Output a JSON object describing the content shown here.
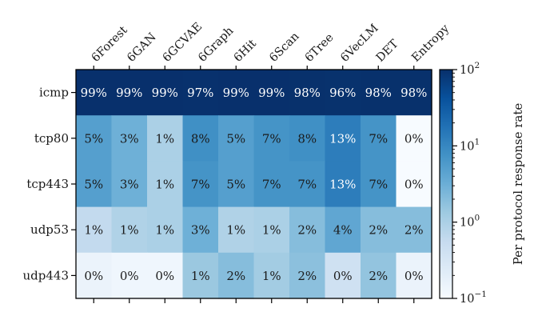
{
  "chart_data": {
    "type": "heatmap",
    "columns": [
      "6Forest",
      "6GAN",
      "6GCVAE",
      "6Graph",
      "6Hit",
      "6Scan",
      "6Tree",
      "6VecLM",
      "DET",
      "Entropy"
    ],
    "rows": [
      "icmp",
      "tcp80",
      "tcp443",
      "udp53",
      "udp443"
    ],
    "cell_labels": [
      [
        "99%",
        "99%",
        "99%",
        "97%",
        "99%",
        "99%",
        "98%",
        "96%",
        "98%",
        "98%"
      ],
      [
        "5%",
        "3%",
        "1%",
        "8%",
        "5%",
        "7%",
        "8%",
        "13%",
        "7%",
        "0%"
      ],
      [
        "5%",
        "3%",
        "1%",
        "7%",
        "5%",
        "7%",
        "7%",
        "13%",
        "7%",
        "0%"
      ],
      [
        "1%",
        "1%",
        "1%",
        "3%",
        "1%",
        "1%",
        "2%",
        "4%",
        "2%",
        "2%"
      ],
      [
        "0%",
        "0%",
        "0%",
        "1%",
        "2%",
        "1%",
        "2%",
        "0%",
        "2%",
        "0%"
      ]
    ],
    "values": [
      [
        99,
        99,
        99,
        97,
        99,
        99,
        98,
        96,
        98,
        98
      ],
      [
        5,
        3,
        1,
        8,
        5,
        7,
        8,
        13,
        7,
        0.1
      ],
      [
        5,
        3,
        1,
        7,
        5,
        7,
        7,
        13,
        7,
        0.1
      ],
      [
        0.6,
        0.9,
        1,
        3,
        0.9,
        1,
        2,
        4,
        2,
        2
      ],
      [
        0.15,
        0.13,
        0.13,
        1.4,
        2,
        1.2,
        1.8,
        0.4,
        1.6,
        0.15
      ]
    ],
    "colorbar": {
      "label": "Per protocol response rate",
      "scale": "log",
      "range": [
        0.1,
        100
      ],
      "tick_values": [
        0.1,
        1,
        10,
        100
      ],
      "tick_bases": [
        "10",
        "10",
        "10",
        "10"
      ],
      "tick_exponents": [
        "−1",
        "0",
        "1",
        "2"
      ],
      "colormap": "Blues"
    }
  }
}
